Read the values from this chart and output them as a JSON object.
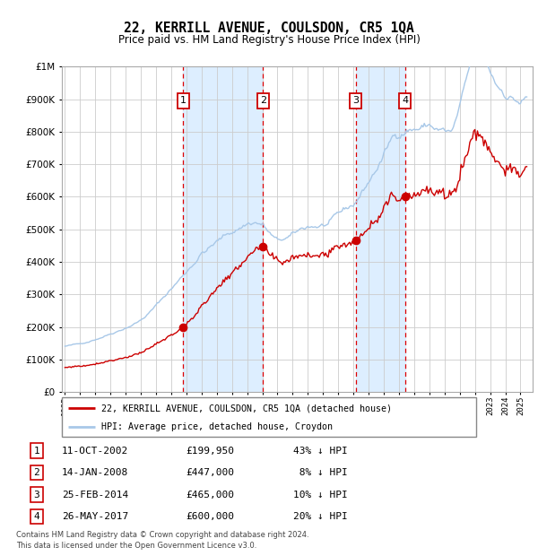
{
  "title": "22, KERRILL AVENUE, COULSDON, CR5 1QA",
  "subtitle": "Price paid vs. HM Land Registry's House Price Index (HPI)",
  "legend_line1": "22, KERRILL AVENUE, COULSDON, CR5 1QA (detached house)",
  "legend_line2": "HPI: Average price, detached house, Croydon",
  "footer1": "Contains HM Land Registry data © Crown copyright and database right 2024.",
  "footer2": "This data is licensed under the Open Government Licence v3.0.",
  "sale_dates": [
    "11-OCT-2002",
    "14-JAN-2008",
    "25-FEB-2014",
    "26-MAY-2017"
  ],
  "sale_prices": [
    199950,
    447000,
    465000,
    600000
  ],
  "sale_years": [
    2002.78,
    2008.04,
    2014.15,
    2017.4
  ],
  "hpi_color": "#a8c8e8",
  "price_color": "#cc0000",
  "vline_color": "#dd0000",
  "shade_color": "#ddeeff",
  "grid_color": "#cccccc",
  "background_color": "#ffffff",
  "ylim_max": 1000000,
  "xlim_start": 1994.8,
  "xlim_end": 2025.8,
  "table_rows": [
    [
      "1",
      "11-OCT-2002",
      "£199,950",
      "43% ↓ HPI"
    ],
    [
      "2",
      "14-JAN-2008",
      "£447,000",
      " 8% ↓ HPI"
    ],
    [
      "3",
      "25-FEB-2014",
      "£465,000",
      "10% ↓ HPI"
    ],
    [
      "4",
      "26-MAY-2017",
      "£600,000",
      "20% ↓ HPI"
    ]
  ]
}
